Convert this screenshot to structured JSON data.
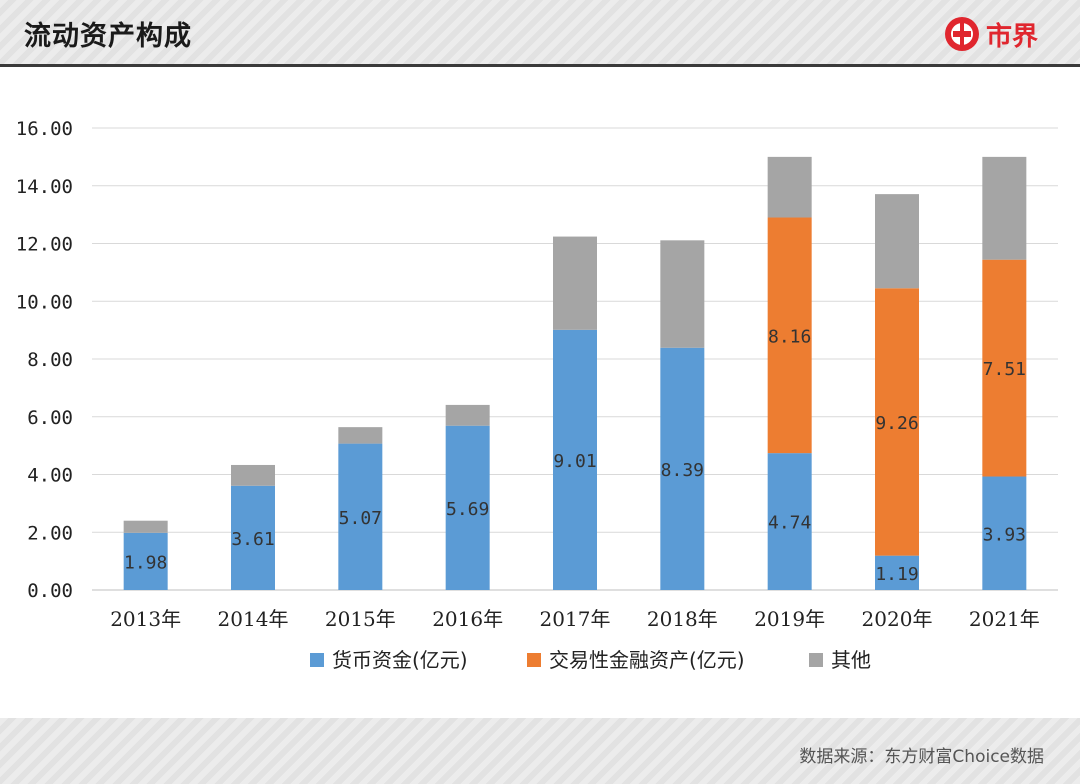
{
  "header": {
    "title": "流动资产构成",
    "logo_text": "市界"
  },
  "footer": {
    "source": "数据来源：东方财富Choice数据"
  },
  "colors": {
    "cash": "#5b9bd5",
    "trading": "#ed7d31",
    "other": "#a5a5a5",
    "brand": "#e0262e"
  },
  "chart_data": {
    "type": "bar",
    "stacked": true,
    "title": "流动资产构成",
    "categories": [
      "2013年",
      "2014年",
      "2015年",
      "2016年",
      "2017年",
      "2018年",
      "2019年",
      "2020年",
      "2021年"
    ],
    "series": [
      {
        "name": "货币资金(亿元)",
        "values": [
          1.98,
          3.61,
          5.07,
          5.69,
          9.01,
          8.39,
          4.74,
          1.19,
          3.93
        ],
        "labels": [
          "1.98",
          "3.61",
          "5.07",
          "5.69",
          "9.01",
          "8.39",
          "4.74",
          "1.19",
          "3.93"
        ]
      },
      {
        "name": "交易性金融资产(亿元)",
        "values": [
          0,
          0,
          0,
          0,
          0,
          0,
          8.16,
          9.26,
          7.51
        ],
        "labels": [
          "",
          "",
          "",
          "",
          "",
          "",
          "8.16",
          "9.26",
          "7.51"
        ]
      },
      {
        "name": "其他",
        "values": [
          0.42,
          0.72,
          0.57,
          0.72,
          3.23,
          3.72,
          2.1,
          3.26,
          3.56
        ],
        "labels": [
          "",
          "",
          "",
          "",
          "",
          "",
          "",
          "",
          ""
        ]
      }
    ],
    "ylim": [
      0,
      16
    ],
    "yticks": [
      "0.00",
      "2.00",
      "4.00",
      "6.00",
      "8.00",
      "10.00",
      "12.00",
      "14.00",
      "16.00"
    ],
    "grid": true,
    "legend": "bottom"
  }
}
